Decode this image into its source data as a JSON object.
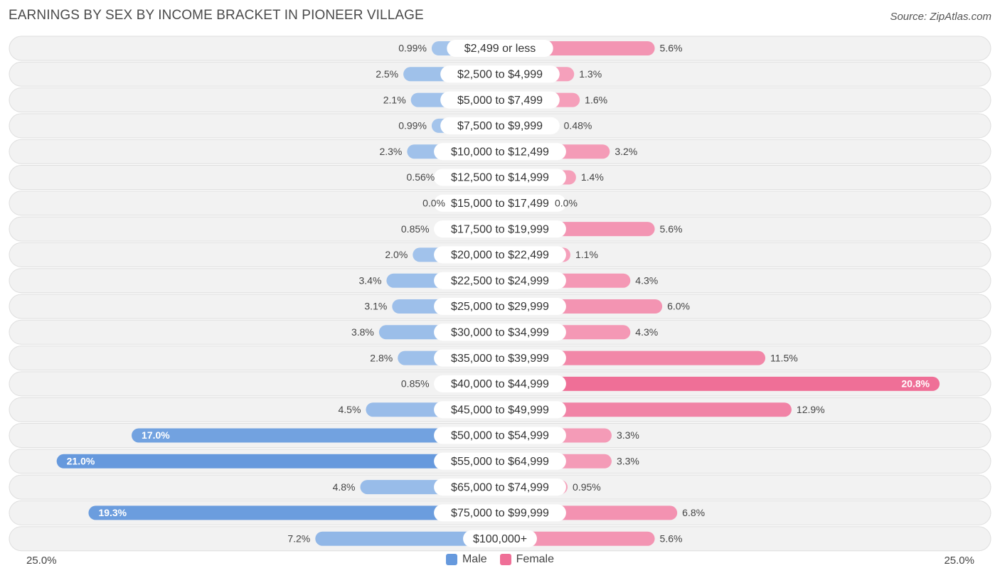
{
  "header": {
    "title": "EARNINGS BY SEX BY INCOME BRACKET IN PIONEER VILLAGE",
    "source": "Source: ZipAtlas.com"
  },
  "axis": {
    "left_label": "25.0%",
    "right_label": "25.0%"
  },
  "legend": {
    "male_label": "Male",
    "female_label": "Female"
  },
  "colors": {
    "male_light": "#a7c6ec",
    "male_dark": "#6699dd",
    "female_light": "#f5a3bd",
    "female_dark": "#ef6f97",
    "row_bg": "#f2f2f2",
    "row_border": "#dedede"
  },
  "chart_data": {
    "type": "bar",
    "orientation": "horizontal-diverging",
    "title": "EARNINGS BY SEX BY INCOME BRACKET IN PIONEER VILLAGE",
    "xlim": [
      -25,
      25
    ],
    "unit": "%",
    "categories": [
      "$2,499 or less",
      "$2,500 to $4,999",
      "$5,000 to $7,499",
      "$7,500 to $9,999",
      "$10,000 to $12,499",
      "$12,500 to $14,999",
      "$15,000 to $17,499",
      "$17,500 to $19,999",
      "$20,000 to $22,499",
      "$22,500 to $24,999",
      "$25,000 to $29,999",
      "$30,000 to $34,999",
      "$35,000 to $39,999",
      "$40,000 to $44,999",
      "$45,000 to $49,999",
      "$50,000 to $54,999",
      "$55,000 to $64,999",
      "$65,000 to $74,999",
      "$75,000 to $99,999",
      "$100,000+"
    ],
    "series": [
      {
        "name": "Male",
        "values": [
          0.99,
          2.5,
          2.1,
          0.99,
          2.3,
          0.56,
          0.0,
          0.85,
          2.0,
          3.4,
          3.1,
          3.8,
          2.8,
          0.85,
          4.5,
          17.0,
          21.0,
          4.8,
          19.3,
          7.2
        ],
        "labels": [
          "0.99%",
          "2.5%",
          "2.1%",
          "0.99%",
          "2.3%",
          "0.56%",
          "0.0%",
          "0.85%",
          "2.0%",
          "3.4%",
          "3.1%",
          "3.8%",
          "2.8%",
          "0.85%",
          "4.5%",
          "17.0%",
          "21.0%",
          "4.8%",
          "19.3%",
          "7.2%"
        ]
      },
      {
        "name": "Female",
        "values": [
          5.6,
          1.3,
          1.6,
          0.48,
          3.2,
          1.4,
          0.0,
          5.6,
          1.1,
          4.3,
          6.0,
          4.3,
          11.5,
          20.8,
          12.9,
          3.3,
          3.3,
          0.95,
          6.8,
          5.6
        ],
        "labels": [
          "5.6%",
          "1.3%",
          "1.6%",
          "0.48%",
          "3.2%",
          "1.4%",
          "0.0%",
          "5.6%",
          "1.1%",
          "4.3%",
          "6.0%",
          "4.3%",
          "11.5%",
          "20.8%",
          "12.9%",
          "3.3%",
          "3.3%",
          "0.95%",
          "6.8%",
          "5.6%"
        ]
      }
    ]
  }
}
